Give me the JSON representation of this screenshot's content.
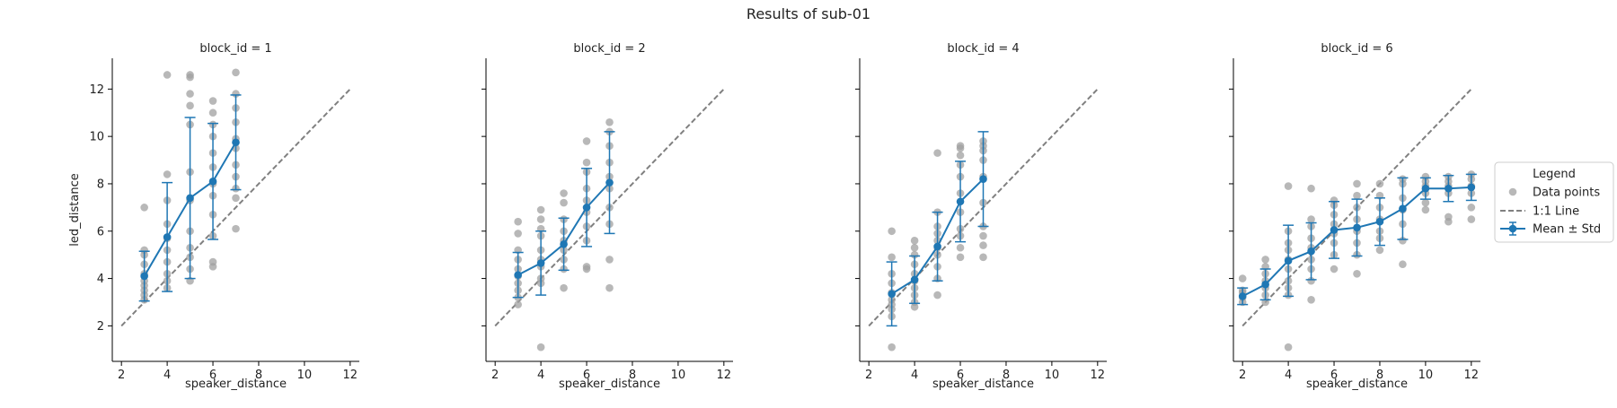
{
  "chart_data": {
    "type": "scatter",
    "title": "Results of sub-01",
    "xlabel": "speaker_distance",
    "ylabel": "led_distance",
    "xlim": [
      1.6,
      12.4
    ],
    "ylim": [
      0.5,
      13.3
    ],
    "xticks": [
      2,
      4,
      6,
      8,
      10,
      12
    ],
    "yticks": [
      2,
      4,
      6,
      8,
      10,
      12
    ],
    "grid": false,
    "sharey": true,
    "colors": {
      "points": "#a0a0a0",
      "identity": "#808080",
      "mean": "#1f77b4"
    },
    "legend": {
      "title": "Legend",
      "placement": "right",
      "entries": [
        "Data points",
        "1:1 Line",
        "Mean ± Std"
      ]
    },
    "identity_line": {
      "label": "1:1 Line",
      "x": [
        2,
        12
      ],
      "y": [
        2,
        12
      ]
    },
    "panels": [
      {
        "title": "block_id = 1",
        "points": [
          [
            3,
            3.1
          ],
          [
            3,
            3.3
          ],
          [
            3,
            3.5
          ],
          [
            3,
            3.7
          ],
          [
            3,
            3.9
          ],
          [
            3,
            4.2
          ],
          [
            3,
            4.6
          ],
          [
            3,
            5.0
          ],
          [
            3,
            5.2
          ],
          [
            3,
            7.0
          ],
          [
            4,
            3.6
          ],
          [
            4,
            3.9
          ],
          [
            4,
            4.2
          ],
          [
            4,
            4.7
          ],
          [
            4,
            5.2
          ],
          [
            4,
            5.7
          ],
          [
            4,
            6.3
          ],
          [
            4,
            7.3
          ],
          [
            4,
            8.4
          ],
          [
            4,
            12.6
          ],
          [
            5,
            3.9
          ],
          [
            5,
            4.4
          ],
          [
            5,
            4.9
          ],
          [
            5,
            5.3
          ],
          [
            5,
            6.0
          ],
          [
            5,
            7.3
          ],
          [
            5,
            8.5
          ],
          [
            5,
            10.5
          ],
          [
            5,
            11.3
          ],
          [
            5,
            11.8
          ],
          [
            5,
            12.5
          ],
          [
            5,
            12.6
          ],
          [
            6,
            4.5
          ],
          [
            6,
            4.7
          ],
          [
            6,
            5.8
          ],
          [
            6,
            6.7
          ],
          [
            6,
            7.5
          ],
          [
            6,
            8.0
          ],
          [
            6,
            8.7
          ],
          [
            6,
            9.3
          ],
          [
            6,
            10.0
          ],
          [
            6,
            10.5
          ],
          [
            6,
            11.0
          ],
          [
            6,
            11.5
          ],
          [
            7,
            6.1
          ],
          [
            7,
            7.4
          ],
          [
            7,
            7.8
          ],
          [
            7,
            8.3
          ],
          [
            7,
            8.8
          ],
          [
            7,
            9.5
          ],
          [
            7,
            9.9
          ],
          [
            7,
            10.6
          ],
          [
            7,
            11.2
          ],
          [
            7,
            11.8
          ],
          [
            7,
            12.7
          ]
        ],
        "mean": [
          [
            3,
            4.1
          ],
          [
            4,
            5.75
          ],
          [
            5,
            7.4
          ],
          [
            6,
            8.1
          ],
          [
            7,
            9.75
          ]
        ],
        "std": [
          1.05,
          2.3,
          3.4,
          2.45,
          2.0
        ]
      },
      {
        "title": "block_id = 2",
        "points": [
          [
            3,
            2.9
          ],
          [
            3,
            3.2
          ],
          [
            3,
            3.5
          ],
          [
            3,
            3.8
          ],
          [
            3,
            4.1
          ],
          [
            3,
            4.4
          ],
          [
            3,
            4.8
          ],
          [
            3,
            5.2
          ],
          [
            3,
            5.9
          ],
          [
            3,
            6.4
          ],
          [
            4,
            1.1
          ],
          [
            4,
            3.8
          ],
          [
            4,
            4.0
          ],
          [
            4,
            4.5
          ],
          [
            4,
            4.8
          ],
          [
            4,
            5.2
          ],
          [
            4,
            5.8
          ],
          [
            4,
            6.1
          ],
          [
            4,
            6.5
          ],
          [
            4,
            6.9
          ],
          [
            5,
            3.6
          ],
          [
            5,
            4.4
          ],
          [
            5,
            4.8
          ],
          [
            5,
            5.2
          ],
          [
            5,
            5.6
          ],
          [
            5,
            6.0
          ],
          [
            5,
            6.5
          ],
          [
            5,
            7.2
          ],
          [
            5,
            7.6
          ],
          [
            6,
            4.4
          ],
          [
            6,
            4.5
          ],
          [
            6,
            5.6
          ],
          [
            6,
            6.2
          ],
          [
            6,
            6.8
          ],
          [
            6,
            7.3
          ],
          [
            6,
            7.8
          ],
          [
            6,
            8.5
          ],
          [
            6,
            8.9
          ],
          [
            6,
            9.8
          ],
          [
            7,
            3.6
          ],
          [
            7,
            4.8
          ],
          [
            7,
            6.3
          ],
          [
            7,
            7.0
          ],
          [
            7,
            7.8
          ],
          [
            7,
            8.3
          ],
          [
            7,
            8.9
          ],
          [
            7,
            9.6
          ],
          [
            7,
            10.2
          ],
          [
            7,
            10.6
          ]
        ],
        "mean": [
          [
            3,
            4.15
          ],
          [
            4,
            4.65
          ],
          [
            5,
            5.45
          ],
          [
            6,
            7.0
          ],
          [
            7,
            8.05
          ]
        ],
        "std": [
          0.95,
          1.35,
          1.1,
          1.65,
          2.15
        ]
      },
      {
        "title": "block_id = 4",
        "points": [
          [
            3,
            1.1
          ],
          [
            3,
            2.4
          ],
          [
            3,
            2.7
          ],
          [
            3,
            2.9
          ],
          [
            3,
            3.1
          ],
          [
            3,
            3.4
          ],
          [
            3,
            3.8
          ],
          [
            3,
            4.2
          ],
          [
            3,
            4.9
          ],
          [
            3,
            6.0
          ],
          [
            4,
            2.8
          ],
          [
            4,
            3.0
          ],
          [
            4,
            3.3
          ],
          [
            4,
            3.6
          ],
          [
            4,
            3.9
          ],
          [
            4,
            4.2
          ],
          [
            4,
            4.6
          ],
          [
            4,
            5.0
          ],
          [
            4,
            5.3
          ],
          [
            4,
            5.6
          ],
          [
            5,
            3.3
          ],
          [
            5,
            4.0
          ],
          [
            5,
            4.5
          ],
          [
            5,
            5.0
          ],
          [
            5,
            5.3
          ],
          [
            5,
            5.6
          ],
          [
            5,
            5.9
          ],
          [
            5,
            6.2
          ],
          [
            5,
            6.8
          ],
          [
            5,
            9.3
          ],
          [
            6,
            4.9
          ],
          [
            6,
            5.3
          ],
          [
            6,
            5.8
          ],
          [
            6,
            6.1
          ],
          [
            6,
            6.8
          ],
          [
            6,
            7.6
          ],
          [
            6,
            8.3
          ],
          [
            6,
            8.8
          ],
          [
            6,
            9.2
          ],
          [
            6,
            9.5
          ],
          [
            6,
            9.6
          ],
          [
            7,
            4.9
          ],
          [
            7,
            5.4
          ],
          [
            7,
            5.8
          ],
          [
            7,
            6.2
          ],
          [
            7,
            7.2
          ],
          [
            7,
            8.3
          ],
          [
            7,
            9.0
          ],
          [
            7,
            9.4
          ],
          [
            7,
            9.6
          ],
          [
            7,
            9.8
          ]
        ],
        "mean": [
          [
            3,
            3.35
          ],
          [
            4,
            3.95
          ],
          [
            5,
            5.35
          ],
          [
            6,
            7.25
          ],
          [
            7,
            8.2
          ]
        ],
        "std": [
          1.35,
          1.0,
          1.45,
          1.7,
          2.0
        ]
      },
      {
        "title": "block_id = 6",
        "points": [
          [
            2,
            3.0
          ],
          [
            2,
            3.2
          ],
          [
            2,
            3.4
          ],
          [
            2,
            3.5
          ],
          [
            2,
            4.0
          ],
          [
            3,
            3.0
          ],
          [
            3,
            3.3
          ],
          [
            3,
            3.6
          ],
          [
            3,
            3.9
          ],
          [
            3,
            4.2
          ],
          [
            3,
            4.5
          ],
          [
            3,
            4.8
          ],
          [
            4,
            1.1
          ],
          [
            4,
            3.3
          ],
          [
            4,
            3.6
          ],
          [
            4,
            3.9
          ],
          [
            4,
            4.4
          ],
          [
            4,
            4.8
          ],
          [
            4,
            5.2
          ],
          [
            4,
            5.5
          ],
          [
            4,
            6.0
          ],
          [
            4,
            7.9
          ],
          [
            5,
            3.1
          ],
          [
            5,
            3.9
          ],
          [
            5,
            4.4
          ],
          [
            5,
            4.8
          ],
          [
            5,
            5.3
          ],
          [
            5,
            5.7
          ],
          [
            5,
            6.2
          ],
          [
            5,
            6.5
          ],
          [
            5,
            7.8
          ],
          [
            6,
            4.4
          ],
          [
            6,
            5.0
          ],
          [
            6,
            5.5
          ],
          [
            6,
            5.9
          ],
          [
            6,
            6.3
          ],
          [
            6,
            6.7
          ],
          [
            6,
            7.1
          ],
          [
            6,
            7.3
          ],
          [
            7,
            4.2
          ],
          [
            7,
            5.0
          ],
          [
            7,
            5.5
          ],
          [
            7,
            6.0
          ],
          [
            7,
            6.5
          ],
          [
            7,
            7.0
          ],
          [
            7,
            7.5
          ],
          [
            7,
            8.0
          ],
          [
            8,
            5.2
          ],
          [
            8,
            5.7
          ],
          [
            8,
            6.0
          ],
          [
            8,
            6.5
          ],
          [
            8,
            7.0
          ],
          [
            8,
            7.5
          ],
          [
            8,
            8.0
          ],
          [
            9,
            4.6
          ],
          [
            9,
            5.6
          ],
          [
            9,
            6.3
          ],
          [
            9,
            6.9
          ],
          [
            9,
            7.4
          ],
          [
            9,
            8.0
          ],
          [
            9,
            8.2
          ],
          [
            10,
            6.9
          ],
          [
            10,
            7.2
          ],
          [
            10,
            7.6
          ],
          [
            10,
            7.9
          ],
          [
            10,
            8.1
          ],
          [
            10,
            8.3
          ],
          [
            11,
            6.4
          ],
          [
            11,
            6.6
          ],
          [
            11,
            7.6
          ],
          [
            11,
            7.9
          ],
          [
            11,
            8.1
          ],
          [
            11,
            8.3
          ],
          [
            12,
            6.5
          ],
          [
            12,
            7.0
          ],
          [
            12,
            7.6
          ],
          [
            12,
            7.9
          ],
          [
            12,
            8.2
          ],
          [
            12,
            8.4
          ]
        ],
        "mean": [
          [
            2,
            3.25
          ],
          [
            3,
            3.75
          ],
          [
            4,
            4.75
          ],
          [
            5,
            5.15
          ],
          [
            6,
            6.05
          ],
          [
            7,
            6.15
          ],
          [
            8,
            6.4
          ],
          [
            9,
            6.95
          ],
          [
            10,
            7.8
          ],
          [
            11,
            7.8
          ],
          [
            12,
            7.85
          ]
        ],
        "std": [
          0.35,
          0.65,
          1.5,
          1.2,
          1.2,
          1.2,
          1.0,
          1.3,
          0.45,
          0.55,
          0.55
        ]
      }
    ]
  }
}
